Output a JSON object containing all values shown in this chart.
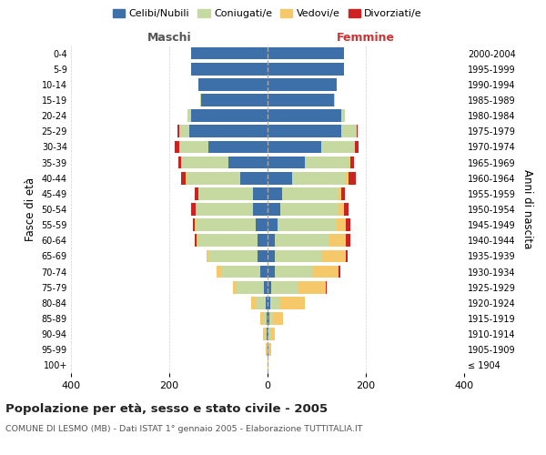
{
  "age_groups": [
    "100+",
    "95-99",
    "90-94",
    "85-89",
    "80-84",
    "75-79",
    "70-74",
    "65-69",
    "60-64",
    "55-59",
    "50-54",
    "45-49",
    "40-44",
    "35-39",
    "30-34",
    "25-29",
    "20-24",
    "15-19",
    "10-14",
    "5-9",
    "0-4"
  ],
  "birth_years": [
    "≤ 1904",
    "1905-1909",
    "1910-1914",
    "1915-1919",
    "1920-1924",
    "1925-1929",
    "1930-1934",
    "1935-1939",
    "1940-1944",
    "1945-1949",
    "1950-1954",
    "1955-1959",
    "1960-1964",
    "1965-1969",
    "1970-1974",
    "1975-1979",
    "1980-1984",
    "1985-1989",
    "1990-1994",
    "1995-1999",
    "2000-2004"
  ],
  "colors": {
    "celibi": "#3d6fa8",
    "coniugati": "#c5d9a0",
    "vedovi": "#f5c96a",
    "divorziati": "#cc2222"
  },
  "males": {
    "celibi": [
      0,
      0,
      1,
      2,
      3,
      8,
      15,
      20,
      20,
      25,
      30,
      30,
      55,
      80,
      120,
      160,
      155,
      135,
      140,
      155,
      155
    ],
    "coniugati": [
      0,
      2,
      4,
      8,
      20,
      55,
      80,
      100,
      120,
      120,
      115,
      110,
      110,
      95,
      60,
      20,
      8,
      2,
      0,
      0,
      0
    ],
    "vedovi": [
      0,
      2,
      4,
      5,
      10,
      8,
      8,
      5,
      5,
      3,
      2,
      1,
      1,
      1,
      0,
      0,
      0,
      0,
      0,
      0,
      0
    ],
    "divorziati": [
      0,
      0,
      0,
      0,
      0,
      0,
      0,
      0,
      3,
      3,
      8,
      8,
      10,
      5,
      8,
      3,
      0,
      0,
      0,
      0,
      0
    ]
  },
  "females": {
    "celibi": [
      0,
      1,
      2,
      4,
      5,
      8,
      15,
      15,
      15,
      20,
      25,
      30,
      50,
      75,
      110,
      150,
      150,
      135,
      140,
      155,
      155
    ],
    "coniugati": [
      0,
      1,
      3,
      8,
      20,
      55,
      75,
      95,
      110,
      120,
      120,
      115,
      110,
      90,
      65,
      30,
      8,
      2,
      0,
      0,
      0
    ],
    "vedovi": [
      1,
      5,
      10,
      20,
      50,
      55,
      55,
      50,
      35,
      20,
      10,
      5,
      5,
      3,
      2,
      1,
      0,
      0,
      0,
      0,
      0
    ],
    "divorziati": [
      0,
      0,
      0,
      0,
      1,
      2,
      3,
      3,
      8,
      8,
      10,
      8,
      15,
      8,
      8,
      3,
      0,
      0,
      0,
      0,
      0
    ]
  },
  "title": "Popolazione per età, sesso e stato civile - 2005",
  "subtitle": "COMUNE DI LESMO (MB) - Dati ISTAT 1° gennaio 2005 - Elaborazione TUTTITALIA.IT",
  "ylabel_left": "Fasce di età",
  "ylabel_right": "Anni di nascita",
  "xlabel_left": "Maschi",
  "xlabel_right": "Femmine",
  "xlim": 400,
  "legend_labels": [
    "Celibi/Nubili",
    "Coniugati/e",
    "Vedovi/e",
    "Divorziati/e"
  ],
  "background_color": "#ffffff",
  "grid_color": "#cccccc"
}
